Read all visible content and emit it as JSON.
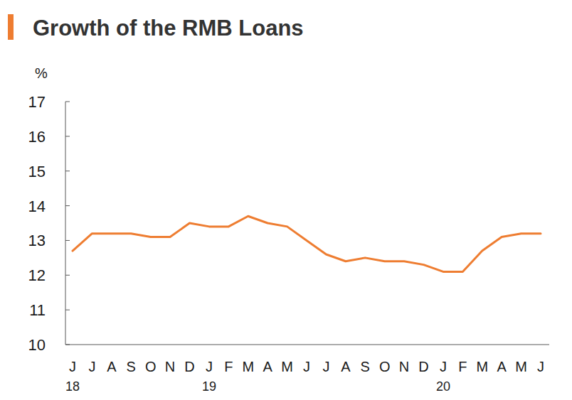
{
  "chart_data": {
    "type": "line",
    "title": "Growth of the RMB Loans",
    "y_label": "%",
    "categories": [
      "J",
      "J",
      "A",
      "S",
      "O",
      "N",
      "D",
      "J",
      "F",
      "M",
      "A",
      "M",
      "J",
      "J",
      "A",
      "S",
      "O",
      "N",
      "D",
      "J",
      "F",
      "M",
      "A",
      "M",
      "J"
    ],
    "year_labels": [
      "18",
      null,
      null,
      null,
      null,
      null,
      null,
      "19",
      null,
      null,
      null,
      null,
      null,
      null,
      null,
      null,
      null,
      null,
      null,
      "20",
      null,
      null,
      null,
      null,
      null
    ],
    "values": [
      12.7,
      13.2,
      13.2,
      13.2,
      13.1,
      13.1,
      13.5,
      13.4,
      13.4,
      13.7,
      13.5,
      13.4,
      13.0,
      12.6,
      12.4,
      12.5,
      12.4,
      12.4,
      12.3,
      12.1,
      12.1,
      12.7,
      13.1,
      13.2,
      13.2
    ],
    "color": "#ee7d31",
    "ylim": [
      10,
      17
    ],
    "yticks": [
      10,
      11,
      12,
      13,
      14,
      15,
      16,
      17
    ],
    "grid": false
  }
}
